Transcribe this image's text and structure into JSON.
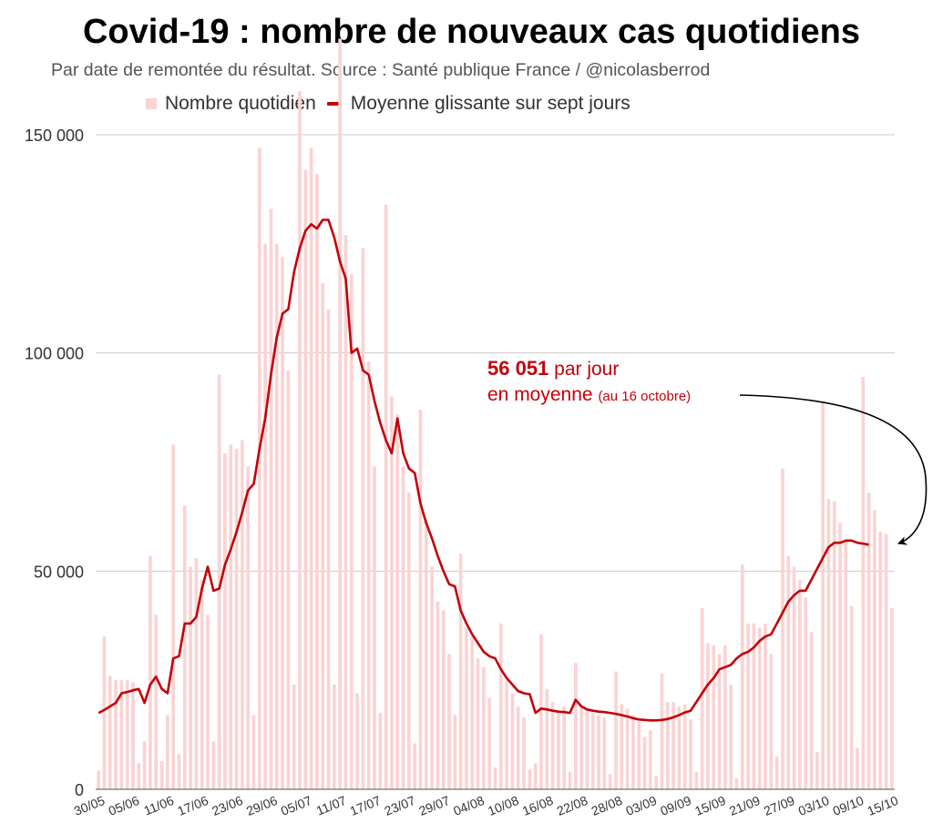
{
  "title": "Covid-19 : nombre de nouveaux cas quotidiens",
  "subtitle": "Par date de remontée du résultat. Source : Santé publique France / @nicolasberrod",
  "legend": {
    "bars": "Nombre quotidien",
    "line": "Moyenne glissante sur sept jours"
  },
  "annotation": {
    "value": "56 051",
    "unit": "par jour",
    "line2": "en moyenne",
    "note": "(au 16 octobre)"
  },
  "colors": {
    "bars": "#fbd3d3",
    "line": "#c4000a",
    "grid": "#cccccc",
    "annotation": "#c4000a"
  },
  "chart_data": {
    "type": "bar",
    "title": "Covid-19 : nombre de nouveaux cas quotidiens",
    "xlabel": "",
    "ylabel": "",
    "ylim": [
      0,
      150000
    ],
    "yticks": [
      0,
      50000,
      100000,
      150000
    ],
    "ytick_labels": [
      "0",
      "50 000",
      "100 000",
      "150 000"
    ],
    "grid": true,
    "x_start": "30/05",
    "xtick_labels": [
      "30/05",
      "05/06",
      "11/06",
      "17/06",
      "23/06",
      "29/06",
      "05/07",
      "11/07",
      "17/07",
      "23/07",
      "29/07",
      "04/08",
      "10/08",
      "16/08",
      "22/08",
      "28/08",
      "03/09",
      "09/09",
      "15/09",
      "21/09",
      "27/09",
      "03/10",
      "09/10",
      "15/10"
    ],
    "series": [
      {
        "name": "Nombre quotidien",
        "type": "bar",
        "values": [
          4300,
          35000,
          26000,
          25000,
          25000,
          25000,
          24500,
          6000,
          11000,
          53500,
          40000,
          6500,
          17000,
          79000,
          8000,
          65000,
          51000,
          53000,
          48000,
          40000,
          11000,
          95000,
          77000,
          79000,
          78000,
          80000,
          74000,
          17000,
          147000,
          125000,
          133000,
          125000,
          122000,
          96000,
          24000,
          160000,
          142000,
          147000,
          141000,
          116000,
          110000,
          24000,
          172000,
          127000,
          118000,
          22000,
          124000,
          98000,
          74000,
          17500,
          134000,
          90000,
          86000,
          74000,
          68000,
          10500,
          87000,
          62000,
          51000,
          43000,
          41000,
          31000,
          17000,
          54000,
          37000,
          35000,
          30000,
          28000,
          21000,
          5000,
          38000,
          25000,
          22000,
          19000,
          16500,
          4500,
          6000,
          35500,
          23000,
          20000,
          17500,
          19000,
          4000,
          29000,
          19000,
          18500,
          17500,
          17000,
          16500,
          3500,
          27000,
          19500,
          18500,
          17000,
          15500,
          12000,
          13500,
          3000,
          26500,
          20000,
          20000,
          19000,
          19500,
          16000,
          4000,
          41500,
          33500,
          33000,
          31000,
          33000,
          24000,
          2500,
          51500,
          38000,
          38000,
          37000,
          38000,
          31000,
          7500,
          73500,
          53500,
          51000,
          48000,
          44000,
          36000,
          8500,
          89000,
          66500,
          66000,
          61000,
          57000,
          42000,
          9500,
          94500,
          68000,
          64000,
          59000,
          58500,
          41500
        ]
      },
      {
        "name": "Moyenne glissante sur sept jours",
        "type": "line",
        "values": [
          17500,
          18200,
          19000,
          19800,
          22000,
          22300,
          22700,
          23000,
          19800,
          24000,
          25800,
          23000,
          22000,
          30000,
          30500,
          38000,
          38000,
          39500,
          46000,
          51000,
          45500,
          46000,
          51500,
          55000,
          59000,
          63500,
          68500,
          70000,
          78000,
          85000,
          95000,
          103500,
          109000,
          110000,
          118500,
          124000,
          128000,
          129500,
          128500,
          130500,
          130500,
          126500,
          121000,
          117000,
          100000,
          101000,
          96000,
          95000,
          89000,
          84000,
          80000,
          77000,
          85000,
          77000,
          73500,
          72500,
          65500,
          61000,
          57500,
          53500,
          50000,
          47000,
          46500,
          41000,
          38000,
          35500,
          33500,
          31500,
          30500,
          30000,
          27500,
          25500,
          24000,
          22500,
          22000,
          21800,
          17500,
          18500,
          18300,
          18000,
          17800,
          17700,
          17500,
          20500,
          19000,
          18300,
          18000,
          17800,
          17700,
          17500,
          17300,
          17000,
          16700,
          16300,
          16000,
          15900,
          15800,
          15800,
          15900,
          16100,
          16500,
          17000,
          17600,
          18000,
          20000,
          22000,
          24000,
          25500,
          27500,
          28000,
          28500,
          30000,
          31000,
          31500,
          32500,
          34000,
          35000,
          35500,
          38000,
          40500,
          43000,
          44500,
          45500,
          45500,
          48000,
          50500,
          53000,
          55500,
          56500,
          56500,
          57000,
          57000,
          56500,
          56300,
          56051
        ]
      }
    ]
  }
}
